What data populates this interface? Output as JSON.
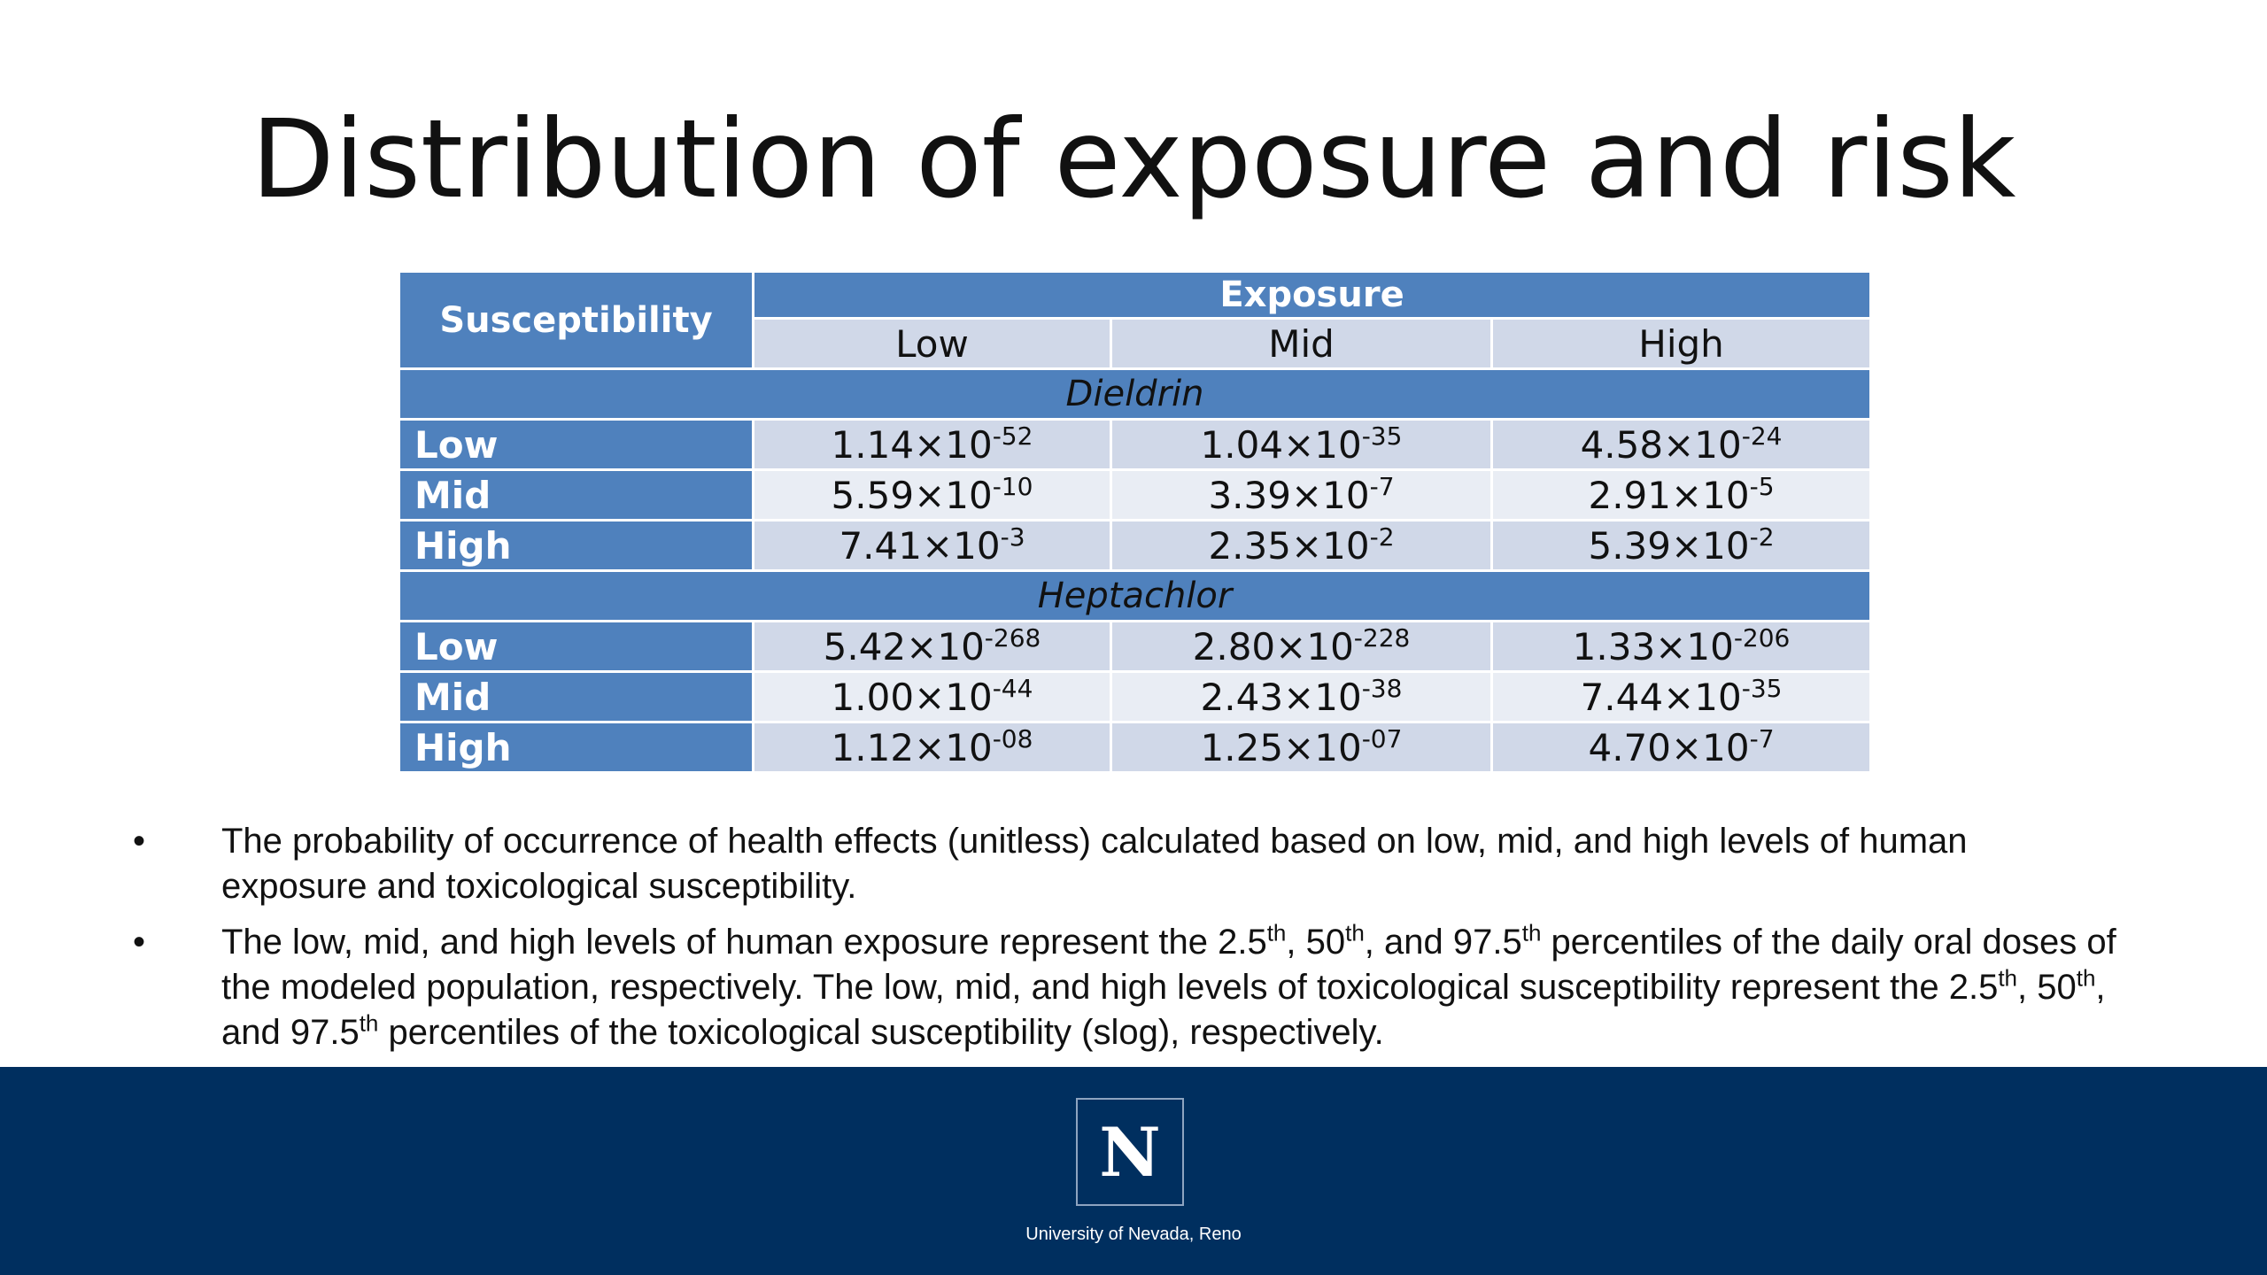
{
  "slide": {
    "title": "Distribution of exposure and risk"
  },
  "table": {
    "corner_header": "Susceptibility",
    "exposure_header": "Exposure",
    "exposure_levels": [
      "Low",
      "Mid",
      "High"
    ],
    "groups": [
      {
        "name": "Dieldrin",
        "rows": [
          {
            "label": "Low",
            "cells": [
              {
                "mant": "1.14×10",
                "exp": "-52"
              },
              {
                "mant": "1.04×10",
                "exp": "-35"
              },
              {
                "mant": "4.58×10",
                "exp": "-24"
              }
            ]
          },
          {
            "label": "Mid",
            "cells": [
              {
                "mant": "5.59×10",
                "exp": "-10"
              },
              {
                "mant": "3.39×10",
                "exp": "-7"
              },
              {
                "mant": "2.91×10",
                "exp": "-5"
              }
            ]
          },
          {
            "label": "High",
            "cells": [
              {
                "mant": "7.41×10",
                "exp": "-3"
              },
              {
                "mant": "2.35×10",
                "exp": "-2"
              },
              {
                "mant": "5.39×10",
                "exp": "-2"
              }
            ]
          }
        ]
      },
      {
        "name": "Heptachlor",
        "rows": [
          {
            "label": "Low",
            "cells": [
              {
                "mant": "5.42×10",
                "exp": "-268"
              },
              {
                "mant": "2.80×10",
                "exp": "-228"
              },
              {
                "mant": "1.33×10",
                "exp": "-206"
              }
            ]
          },
          {
            "label": "Mid",
            "cells": [
              {
                "mant": "1.00×10",
                "exp": "-44"
              },
              {
                "mant": "2.43×10",
                "exp": "-38"
              },
              {
                "mant": "7.44×10",
                "exp": "-35"
              }
            ]
          },
          {
            "label": "High",
            "cells": [
              {
                "mant": "1.12×10",
                "exp": "-08"
              },
              {
                "mant": "1.25×10",
                "exp": "-07"
              },
              {
                "mant": "4.70×10",
                "exp": "-7"
              }
            ]
          }
        ]
      }
    ]
  },
  "notes": {
    "bullet": "•",
    "note1": "The probability of occurrence of health effects (unitless) calculated based on low, mid, and high levels of human exposure and toxicological susceptibility.",
    "note2": {
      "p1": "The low, mid, and high levels of human exposure represent the 2.5",
      "s1": "th",
      "p2": ", 50",
      "s2": "th",
      "p3": ", and 97.5",
      "s3": "th",
      "p4": " percentiles of the daily oral doses of the modeled population, respectively. The low, mid, and high levels of toxicological susceptibility represent the 2.5",
      "s4": "th",
      "p5": ", 50",
      "s5": "th",
      "p6": ", and 97.5",
      "s6": "th",
      "p7": " percentiles of the toxicological susceptibility (slog), respectively."
    }
  },
  "footer": {
    "logo_letter": "N",
    "institution": "University of Nevada, Reno",
    "background_color": "#002f5f"
  },
  "colors": {
    "header_blue": "#4f81bd",
    "cell_light": "#d0d8e8",
    "cell_lighter": "#e9edf4"
  }
}
